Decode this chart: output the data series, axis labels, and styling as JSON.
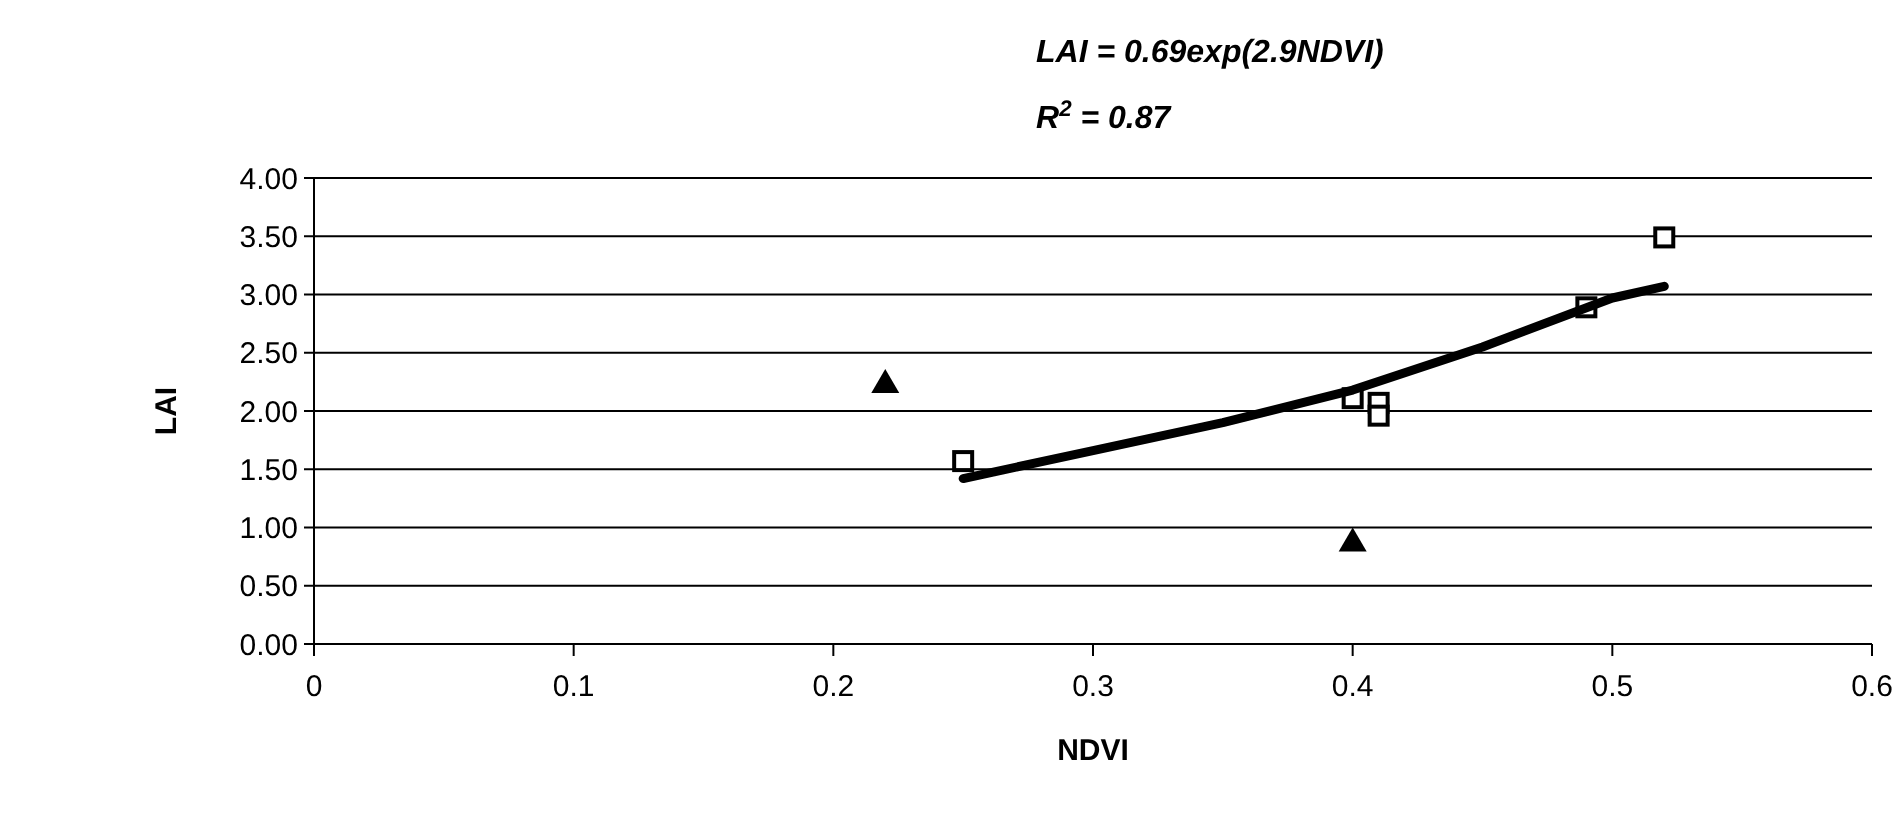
{
  "chart_data": {
    "type": "scatter",
    "xlabel": "NDVI",
    "ylabel": "LAI",
    "annotations": [
      "LAI = 0.69exp(2.9NDVI)",
      "R$^{2}$ = 0.87"
    ],
    "xlim": [
      0,
      0.6
    ],
    "xticks": [
      0,
      0.1,
      0.2,
      0.3,
      0.4,
      0.5,
      0.6
    ],
    "ylim": [
      0,
      4
    ],
    "yticks": [
      {
        "value": 0,
        "label": "0.00"
      },
      {
        "value": 0.5,
        "label": "0.50"
      },
      {
        "value": 1,
        "label": "1.00"
      },
      {
        "value": 1.5,
        "label": "1.50"
      },
      {
        "value": 2,
        "label": "2.00"
      },
      {
        "value": 2.5,
        "label": "2.50"
      },
      {
        "value": 3,
        "label": "3.00"
      },
      {
        "value": 3.5,
        "label": "3.50"
      },
      {
        "value": 4,
        "label": "4.00"
      }
    ],
    "grid": "y",
    "series": [
      {
        "marker": "square",
        "color": "#000000",
        "x": [
          0.25,
          0.4,
          0.41,
          0.41,
          0.49,
          0.52
        ],
        "values": [
          1.57,
          2.11,
          2.07,
          1.96,
          2.89,
          3.49
        ]
      },
      {
        "marker": "triangle",
        "color": "#000000",
        "x": [
          0.22,
          0.4
        ],
        "values": [
          2.24,
          0.88
        ]
      },
      {
        "type": "line",
        "marker": "none",
        "line_style": "solid",
        "color": "#000000",
        "x": [
          0.25,
          0.3,
          0.35,
          0.4,
          0.45,
          0.5,
          0.52
        ],
        "values": [
          1.42,
          1.66,
          1.9,
          2.18,
          2.55,
          2.97,
          3.07
        ]
      }
    ]
  }
}
